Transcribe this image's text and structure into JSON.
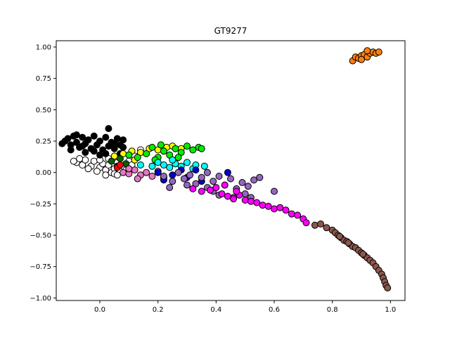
{
  "chart_data": {
    "type": "scatter",
    "title": "GT9277",
    "xlabel": "",
    "ylabel": "",
    "xlim": [
      -0.15,
      1.05
    ],
    "ylim": [
      -1.02,
      1.05
    ],
    "xticks": [
      0.0,
      0.2,
      0.4,
      0.6,
      0.8,
      1.0
    ],
    "xtick_labels": [
      "0.0",
      "0.2",
      "0.4",
      "0.6",
      "0.8",
      "1.0"
    ],
    "yticks": [
      -1.0,
      -0.75,
      -0.5,
      -0.25,
      0.0,
      0.25,
      0.5,
      0.75,
      1.0
    ],
    "ytick_labels": [
      "−1.00",
      "−0.75",
      "−0.50",
      "−0.25",
      "0.00",
      "0.25",
      "0.50",
      "0.75",
      "1.00"
    ],
    "grid": false,
    "legend": false,
    "marker_edge_color": "#000000",
    "clusters": [
      {
        "color": "#ffffff",
        "points": [
          [
            -0.08,
            0.08
          ],
          [
            -0.06,
            0.06
          ],
          [
            -0.05,
            0.1
          ],
          [
            -0.03,
            0.05
          ],
          [
            -0.02,
            0.09
          ],
          [
            0.0,
            0.04
          ],
          [
            0.01,
            0.07
          ],
          [
            0.02,
            0.02
          ],
          [
            0.03,
            0.06
          ],
          [
            0.04,
            0.0
          ],
          [
            0.05,
            0.03
          ],
          [
            0.06,
            0.08
          ],
          [
            0.07,
            0.01
          ],
          [
            0.08,
            0.05
          ],
          [
            -0.07,
            0.11
          ],
          [
            -0.04,
            0.03
          ],
          [
            -0.01,
            0.01
          ],
          [
            0.02,
            -0.02
          ],
          [
            0.05,
            -0.01
          ],
          [
            0.09,
            0.02
          ],
          [
            0.1,
            0.09
          ],
          [
            0.12,
            0.13
          ],
          [
            0.14,
            0.18
          ],
          [
            0.0,
            0.1
          ],
          [
            -0.09,
            0.09
          ],
          [
            0.03,
            0.11
          ],
          [
            0.06,
            -0.02
          ],
          [
            0.11,
            0.06
          ]
        ]
      },
      {
        "color": "#000000",
        "points": [
          [
            -0.12,
            0.25
          ],
          [
            -0.11,
            0.27
          ],
          [
            -0.1,
            0.22
          ],
          [
            -0.09,
            0.29
          ],
          [
            -0.08,
            0.24
          ],
          [
            -0.07,
            0.2
          ],
          [
            -0.06,
            0.28
          ],
          [
            -0.05,
            0.23
          ],
          [
            -0.04,
            0.26
          ],
          [
            -0.03,
            0.19
          ],
          [
            -0.02,
            0.29
          ],
          [
            -0.01,
            0.22
          ],
          [
            0.0,
            0.25
          ],
          [
            0.01,
            0.18
          ],
          [
            0.02,
            0.28
          ],
          [
            0.03,
            0.21
          ],
          [
            0.04,
            0.24
          ],
          [
            0.05,
            0.19
          ],
          [
            0.06,
            0.27
          ],
          [
            0.07,
            0.22
          ],
          [
            0.08,
            0.2
          ],
          [
            0.08,
            0.26
          ],
          [
            0.03,
            0.35
          ],
          [
            -0.1,
            0.18
          ],
          [
            -0.13,
            0.23
          ],
          [
            0.0,
            0.14
          ],
          [
            -0.05,
            0.16
          ],
          [
            0.02,
            0.15
          ],
          [
            0.05,
            0.23
          ],
          [
            -0.08,
            0.3
          ],
          [
            -0.02,
            0.17
          ],
          [
            0.07,
            0.15
          ],
          [
            -0.06,
            0.21
          ]
        ]
      },
      {
        "color": "#ffff00",
        "points": [
          [
            0.05,
            0.13
          ],
          [
            0.08,
            0.15
          ],
          [
            0.11,
            0.17
          ],
          [
            0.14,
            0.16
          ],
          [
            0.17,
            0.19
          ],
          [
            0.2,
            0.18
          ],
          [
            0.23,
            0.2
          ],
          [
            0.25,
            0.21
          ],
          [
            0.28,
            0.19
          ],
          [
            0.12,
            0.1
          ]
        ]
      },
      {
        "color": "#00ee00",
        "points": [
          [
            0.1,
            0.14
          ],
          [
            0.13,
            0.12
          ],
          [
            0.16,
            0.15
          ],
          [
            0.18,
            0.2
          ],
          [
            0.2,
            0.12
          ],
          [
            0.22,
            0.17
          ],
          [
            0.24,
            0.14
          ],
          [
            0.26,
            0.19
          ],
          [
            0.28,
            0.16
          ],
          [
            0.3,
            0.21
          ],
          [
            0.32,
            0.18
          ],
          [
            0.34,
            0.2
          ],
          [
            0.35,
            0.19
          ],
          [
            0.21,
            0.22
          ],
          [
            0.27,
            0.12
          ],
          [
            0.19,
            0.1
          ]
        ]
      },
      {
        "color": "#006400",
        "points": [
          [
            0.04,
            0.09
          ],
          [
            0.07,
            0.11
          ],
          [
            0.09,
            0.07
          ],
          [
            0.06,
            0.05
          ]
        ]
      },
      {
        "color": "#00ffff",
        "points": [
          [
            0.18,
            0.05
          ],
          [
            0.2,
            0.08
          ],
          [
            0.22,
            0.06
          ],
          [
            0.24,
            0.04
          ],
          [
            0.26,
            0.07
          ],
          [
            0.28,
            0.05
          ],
          [
            0.3,
            0.08
          ],
          [
            0.32,
            0.03
          ],
          [
            0.33,
            0.06
          ],
          [
            0.36,
            0.05
          ],
          [
            0.25,
            0.1
          ],
          [
            0.14,
            0.06
          ]
        ]
      },
      {
        "color": "#ff0000",
        "points": [
          [
            0.06,
            0.04
          ],
          [
            0.07,
            0.06
          ]
        ]
      },
      {
        "color": "#e377c2",
        "points": [
          [
            0.08,
            0.0
          ],
          [
            0.1,
            -0.01
          ],
          [
            0.12,
            0.02
          ],
          [
            0.14,
            -0.02
          ],
          [
            0.16,
            0.0
          ],
          [
            0.18,
            -0.03
          ],
          [
            0.2,
            0.01
          ],
          [
            0.13,
            -0.05
          ],
          [
            0.22,
            -0.04
          ],
          [
            0.1,
            0.03
          ]
        ]
      },
      {
        "color": "#0000cc",
        "points": [
          [
            0.2,
            0.0
          ],
          [
            0.22,
            -0.06
          ],
          [
            0.25,
            -0.02
          ],
          [
            0.28,
            0.02
          ],
          [
            0.3,
            -0.04
          ],
          [
            0.33,
            0.02
          ],
          [
            0.44,
            0.0
          ],
          [
            0.35,
            -0.07
          ]
        ]
      },
      {
        "color": "#9467bd",
        "points": [
          [
            0.22,
            -0.03
          ],
          [
            0.25,
            -0.07
          ],
          [
            0.27,
            0.0
          ],
          [
            0.29,
            -0.05
          ],
          [
            0.31,
            -0.02
          ],
          [
            0.33,
            -0.09
          ],
          [
            0.35,
            -0.04
          ],
          [
            0.37,
            -0.12
          ],
          [
            0.39,
            -0.07
          ],
          [
            0.41,
            -0.03
          ],
          [
            0.43,
            -0.1
          ],
          [
            0.45,
            -0.05
          ],
          [
            0.47,
            -0.13
          ],
          [
            0.49,
            -0.08
          ],
          [
            0.51,
            -0.11
          ],
          [
            0.53,
            -0.06
          ],
          [
            0.55,
            -0.04
          ],
          [
            0.41,
            -0.18
          ],
          [
            0.46,
            -0.2
          ],
          [
            0.5,
            -0.17
          ],
          [
            0.37,
            0.0
          ],
          [
            0.24,
            -0.12
          ],
          [
            0.3,
            -0.1
          ],
          [
            0.6,
            -0.15
          ],
          [
            0.52,
            -0.2
          ],
          [
            0.39,
            -0.15
          ]
        ]
      },
      {
        "color": "#ff00ff",
        "points": [
          [
            0.32,
            -0.13
          ],
          [
            0.35,
            -0.15
          ],
          [
            0.38,
            -0.14
          ],
          [
            0.4,
            -0.12
          ],
          [
            0.42,
            -0.17
          ],
          [
            0.44,
            -0.19
          ],
          [
            0.46,
            -0.21
          ],
          [
            0.48,
            -0.18
          ],
          [
            0.5,
            -0.22
          ],
          [
            0.52,
            -0.23
          ],
          [
            0.54,
            -0.24
          ],
          [
            0.56,
            -0.26
          ],
          [
            0.58,
            -0.27
          ],
          [
            0.6,
            -0.29
          ],
          [
            0.62,
            -0.28
          ],
          [
            0.64,
            -0.3
          ],
          [
            0.66,
            -0.33
          ],
          [
            0.68,
            -0.34
          ],
          [
            0.7,
            -0.37
          ],
          [
            0.71,
            -0.4
          ],
          [
            0.47,
            -0.15
          ],
          [
            0.43,
            -0.1
          ]
        ]
      },
      {
        "color": "#8c564b",
        "points": [
          [
            0.74,
            -0.42
          ],
          [
            0.76,
            -0.41
          ],
          [
            0.78,
            -0.44
          ],
          [
            0.8,
            -0.46
          ],
          [
            0.81,
            -0.48
          ],
          [
            0.82,
            -0.5
          ],
          [
            0.83,
            -0.52
          ],
          [
            0.84,
            -0.54
          ],
          [
            0.85,
            -0.55
          ],
          [
            0.86,
            -0.57
          ],
          [
            0.87,
            -0.59
          ],
          [
            0.88,
            -0.6
          ],
          [
            0.89,
            -0.62
          ],
          [
            0.9,
            -0.64
          ],
          [
            0.91,
            -0.66
          ],
          [
            0.92,
            -0.68
          ],
          [
            0.93,
            -0.7
          ],
          [
            0.94,
            -0.72
          ],
          [
            0.95,
            -0.75
          ],
          [
            0.96,
            -0.78
          ],
          [
            0.97,
            -0.81
          ],
          [
            0.975,
            -0.84
          ],
          [
            0.98,
            -0.87
          ],
          [
            0.985,
            -0.9
          ],
          [
            0.99,
            -0.92
          ],
          [
            0.825,
            -0.51
          ],
          [
            0.855,
            -0.56
          ],
          [
            0.905,
            -0.65
          ]
        ]
      },
      {
        "color": "#ff7f0e",
        "points": [
          [
            0.87,
            0.89
          ],
          [
            0.88,
            0.92
          ],
          [
            0.89,
            0.91
          ],
          [
            0.9,
            0.93
          ],
          [
            0.91,
            0.94
          ],
          [
            0.92,
            0.92
          ],
          [
            0.93,
            0.95
          ],
          [
            0.94,
            0.96
          ],
          [
            0.95,
            0.95
          ],
          [
            0.96,
            0.96
          ],
          [
            0.9,
            0.9
          ],
          [
            0.92,
            0.97
          ]
        ]
      }
    ]
  }
}
